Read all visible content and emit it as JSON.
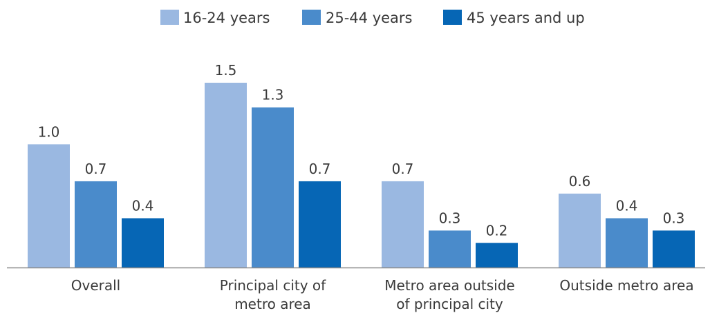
{
  "chart_data": {
    "type": "bar",
    "categories": [
      [
        "Overall"
      ],
      [
        "Principal city of",
        "metro area"
      ],
      [
        "Metro area outside",
        "of principal city"
      ],
      [
        "Outside metro area"
      ]
    ],
    "series": [
      {
        "name": "16-24 years",
        "color": "#9ab8e1",
        "values": [
          1.0,
          1.5,
          0.7,
          0.6
        ]
      },
      {
        "name": "25-44 years",
        "color": "#4a8bcb",
        "values": [
          0.7,
          1.3,
          0.3,
          0.4
        ]
      },
      {
        "name": "45 years and up",
        "color": "#0666b5",
        "values": [
          0.4,
          0.7,
          0.2,
          0.3
        ]
      }
    ],
    "value_labels": [
      [
        "1.0",
        "0.7",
        "0.4"
      ],
      [
        "1.5",
        "1.3",
        "0.7"
      ],
      [
        "0.7",
        "0.3",
        "0.2"
      ],
      [
        "0.6",
        "0.4",
        "0.3"
      ]
    ],
    "ylim": [
      0,
      1.5
    ],
    "grid": false,
    "legend": "top-center"
  }
}
